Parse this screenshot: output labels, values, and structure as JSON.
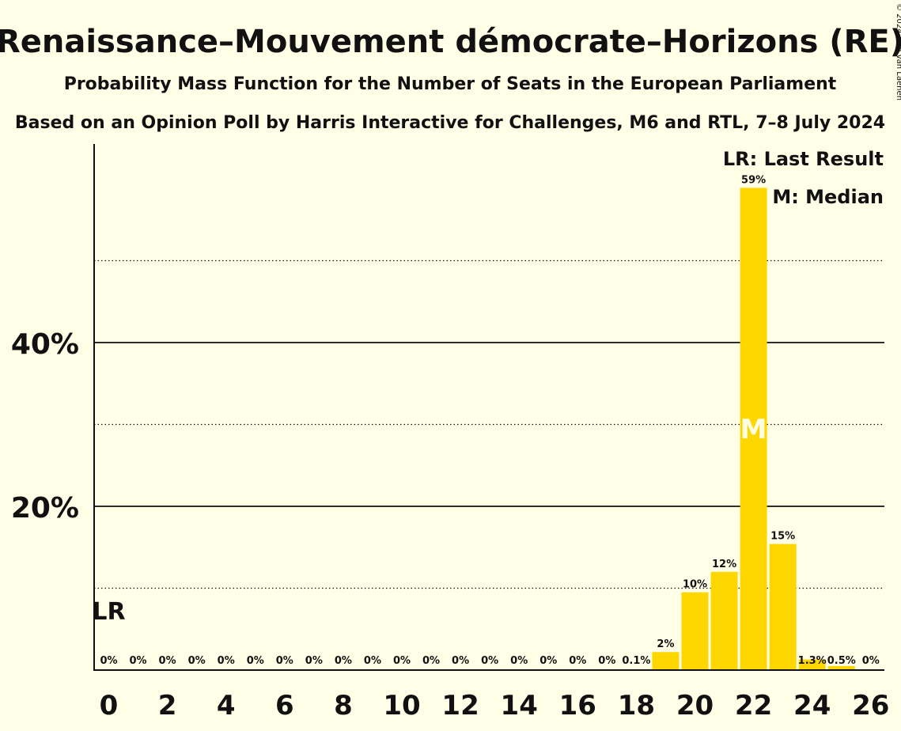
{
  "chart_data": {
    "type": "bar",
    "title": "Renaissance–Mouvement démocrate–Horizons (RE)",
    "subtitle": "Probability Mass Function for the Number of Seats in the European Parliament",
    "subtitle2": "Based on an Opinion Poll by Harris Interactive for Challenges, M6 and RTL, 7–8 July 2024",
    "copyright": "© 2024 Filip van Laenen",
    "legend": {
      "lr": "LR: Last Result",
      "median": "M: Median",
      "placement": "top-right"
    },
    "x": [
      0,
      1,
      2,
      3,
      4,
      5,
      6,
      7,
      8,
      9,
      10,
      11,
      12,
      13,
      14,
      15,
      16,
      17,
      18,
      19,
      20,
      21,
      22,
      23,
      24,
      25,
      26
    ],
    "values": [
      0,
      0,
      0,
      0,
      0,
      0,
      0,
      0,
      0,
      0,
      0,
      0,
      0,
      0,
      0,
      0,
      0,
      0,
      0.1,
      2.2,
      9.5,
      12,
      58.9,
      15.4,
      1.3,
      0.5,
      0
    ],
    "labels": [
      "0%",
      "0%",
      "0%",
      "0%",
      "0%",
      "0%",
      "0%",
      "0%",
      "0%",
      "0%",
      "0%",
      "0%",
      "0%",
      "0%",
      "0%",
      "0%",
      "0%",
      "0%",
      "0.1%",
      "2%",
      "10%",
      "12%",
      "59%",
      "15%",
      "1.3%",
      "0.5%",
      "0%"
    ],
    "xticks": [
      "0",
      "2",
      "4",
      "6",
      "8",
      "10",
      "12",
      "14",
      "16",
      "18",
      "20",
      "22",
      "24",
      "26"
    ],
    "yticks": [
      {
        "value": 20,
        "label": "20%"
      },
      {
        "value": 40,
        "label": "40%"
      }
    ],
    "minor_gridlines": [
      10,
      30,
      50
    ],
    "ylim": [
      0,
      64
    ],
    "last_result_seat": 0,
    "last_result_marker": "LR",
    "median_seat": 22,
    "median_marker": "M",
    "colors": {
      "bar": "#FFD700",
      "background": "#FFFEE6",
      "text": "#111111",
      "median_text": "#FFFEE6"
    }
  }
}
